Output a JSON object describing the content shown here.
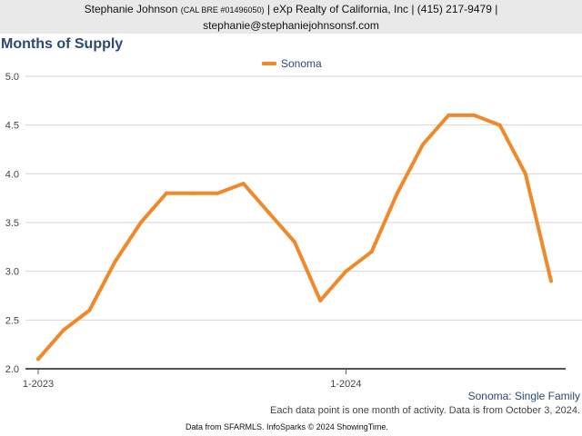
{
  "header": {
    "line1_name": "Stephanie Johnson",
    "line1_license": "(CAL BRE #01496050)",
    "line1_rest": "| eXp Realty of California, Inc | (415) 217-9479 |",
    "line2": "stephanie@stephaniejohnsonsf.com"
  },
  "footer": {
    "subtitle": "Sonoma: Single Family",
    "note": "Each data point is one month of activity. Data is from October 3, 2024.",
    "source": "Data from SFARMLS. InfoSparks © 2024 ShowingTime."
  },
  "colors": {
    "series": "#f0892a",
    "title": "#2a4a73",
    "grid": "#d6d6d6"
  },
  "chart_data": {
    "type": "line",
    "title": "Months of Supply",
    "xlabel": "",
    "ylabel": "",
    "ylim": [
      2.0,
      5.0
    ],
    "yticks": [
      "2.0",
      "2.5",
      "3.0",
      "3.5",
      "4.0",
      "4.5",
      "5.0"
    ],
    "x": [
      "2023-01",
      "2023-02",
      "2023-03",
      "2023-04",
      "2023-05",
      "2023-06",
      "2023-07",
      "2023-08",
      "2023-09",
      "2023-10",
      "2023-11",
      "2023-12",
      "2024-01",
      "2024-02",
      "2024-03",
      "2024-04",
      "2024-05",
      "2024-06",
      "2024-07",
      "2024-08",
      "2024-09"
    ],
    "xtick_labels": [
      {
        "x": "2023-01",
        "label": "1-2023"
      },
      {
        "x": "2024-01",
        "label": "1-2024"
      }
    ],
    "grid": true,
    "legend_position": "top-center",
    "series": [
      {
        "name": "Sonoma",
        "values": [
          2.1,
          2.4,
          2.6,
          3.1,
          3.5,
          3.8,
          3.8,
          3.8,
          3.9,
          3.6,
          3.3,
          2.7,
          3.0,
          3.2,
          3.8,
          4.3,
          4.6,
          4.6,
          4.5,
          4.0,
          2.9
        ]
      }
    ]
  }
}
